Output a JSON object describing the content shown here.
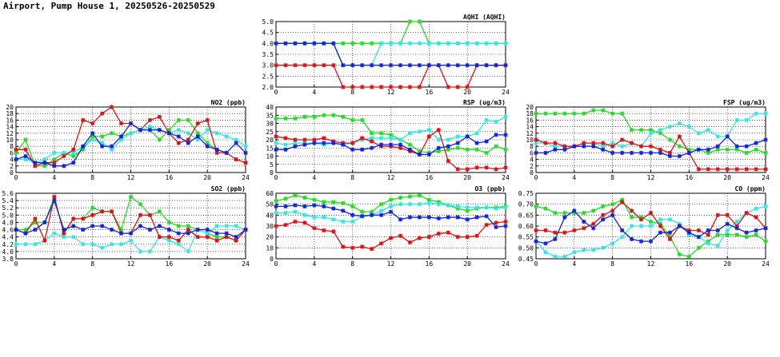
{
  "page": {
    "title": "Airport, Pump House 1, 20250526-20250529"
  },
  "colors": {
    "green": "#22dd22",
    "cyan": "#33e6e6",
    "red": "#dd1111",
    "blue": "#1122dd"
  },
  "chart_data": [
    {
      "id": "aqhi",
      "type": "line",
      "title": "AQHI (AQHI)",
      "xticks": [
        0,
        4,
        8,
        12,
        16,
        20,
        24
      ],
      "yticks": [
        2.0,
        2.5,
        3.0,
        3.5,
        4.0,
        4.5,
        5.0
      ],
      "ylim": [
        2.0,
        5.0
      ],
      "ytick_labels": [
        "2.0",
        "2.5",
        "3.0",
        "3.5",
        "4.0",
        "4.5",
        "5.0"
      ],
      "x": [
        0,
        1,
        2,
        3,
        4,
        5,
        6,
        7,
        8,
        9,
        10,
        11,
        12,
        13,
        14,
        15,
        16,
        17,
        18,
        19,
        20,
        21,
        22,
        23,
        24
      ],
      "series": [
        {
          "color": "green",
          "values": [
            4,
            4,
            4,
            4,
            4,
            4,
            4,
            4,
            4,
            4,
            4,
            4,
            4,
            4,
            5,
            5,
            4,
            4,
            4,
            4,
            4,
            4,
            4,
            4,
            4
          ]
        },
        {
          "color": "cyan",
          "values": [
            4,
            4,
            4,
            4,
            4,
            4,
            4,
            3,
            3,
            3,
            3,
            4,
            4,
            4,
            4,
            4,
            4,
            4,
            4,
            4,
            4,
            4,
            4,
            4,
            4
          ]
        },
        {
          "color": "red",
          "values": [
            3,
            3,
            3,
            3,
            3,
            3,
            3,
            2,
            2,
            2,
            2,
            2,
            2,
            2,
            2,
            2,
            3,
            3,
            2,
            2,
            2,
            3,
            3,
            3,
            3
          ]
        },
        {
          "color": "blue",
          "values": [
            4,
            4,
            4,
            4,
            4,
            4,
            4,
            3,
            3,
            3,
            3,
            3,
            3,
            3,
            3,
            3,
            3,
            3,
            3,
            3,
            3,
            3,
            3,
            3,
            3
          ]
        }
      ]
    },
    {
      "id": "no2",
      "type": "line",
      "title": "NO2 (ppb)",
      "xticks": [
        0,
        4,
        8,
        12,
        16,
        20,
        24
      ],
      "yticks": [
        0,
        2,
        4,
        6,
        8,
        10,
        12,
        14,
        16,
        18,
        20
      ],
      "ylim": [
        0,
        20
      ],
      "ytick_labels": [
        "0",
        "2",
        "4",
        "6",
        "8",
        "10",
        "12",
        "14",
        "16",
        "18",
        "20"
      ],
      "x": [
        0,
        1,
        2,
        3,
        4,
        5,
        6,
        7,
        8,
        9,
        10,
        11,
        12,
        13,
        14,
        15,
        16,
        17,
        18,
        19,
        20,
        21,
        22,
        23,
        24
      ],
      "series": [
        {
          "color": "green",
          "values": [
            6,
            10,
            2,
            2,
            4,
            6,
            5,
            7,
            11,
            11,
            12,
            11,
            12,
            13,
            13,
            10,
            13,
            16,
            16,
            12,
            9,
            7,
            6,
            4,
            3
          ]
        },
        {
          "color": "cyan",
          "values": [
            4,
            4,
            3,
            4,
            6,
            6,
            6,
            8,
            10,
            9,
            7,
            10,
            12,
            13,
            14,
            13,
            12,
            13,
            12,
            10,
            13,
            12,
            11,
            10,
            8
          ]
        },
        {
          "color": "red",
          "values": [
            7,
            7,
            2,
            3,
            3,
            5,
            7,
            16,
            15,
            18,
            20,
            15,
            15,
            13,
            16,
            17,
            12,
            9,
            10,
            15,
            16,
            6,
            6,
            4,
            3
          ]
        },
        {
          "color": "blue",
          "values": [
            4,
            5,
            3,
            3,
            2,
            2,
            3,
            8,
            12,
            8,
            8,
            11,
            15,
            13,
            13,
            13,
            12,
            11,
            9,
            11,
            8,
            7,
            6,
            9,
            6
          ]
        }
      ]
    },
    {
      "id": "rsp",
      "type": "line",
      "title": "RSP (ug/m3)",
      "xticks": [
        0,
        4,
        8,
        12,
        16,
        20,
        24
      ],
      "yticks": [
        0,
        5,
        10,
        15,
        20,
        25,
        30,
        35,
        40
      ],
      "ylim": [
        0,
        40
      ],
      "ytick_labels": [
        "0",
        "5",
        "10",
        "15",
        "20",
        "25",
        "30",
        "35",
        "40"
      ],
      "x": [
        0,
        1,
        2,
        3,
        4,
        5,
        6,
        7,
        8,
        9,
        10,
        11,
        12,
        13,
        14,
        15,
        16,
        17,
        18,
        19,
        20,
        21,
        22,
        23,
        24
      ],
      "series": [
        {
          "color": "green",
          "values": [
            33,
            33,
            33,
            34,
            34,
            35,
            35,
            34,
            32,
            32,
            24,
            24,
            23,
            20,
            17,
            13,
            12,
            13,
            14,
            15,
            14,
            14,
            12,
            16,
            14
          ]
        },
        {
          "color": "cyan",
          "values": [
            18,
            17,
            18,
            18,
            18,
            17,
            18,
            17,
            18,
            20,
            21,
            21,
            21,
            20,
            24,
            25,
            26,
            20,
            20,
            22,
            22,
            24,
            32,
            31,
            34
          ]
        },
        {
          "color": "red",
          "values": [
            22,
            21,
            20,
            20,
            20,
            21,
            19,
            18,
            18,
            21,
            19,
            16,
            16,
            15,
            13,
            11,
            22,
            26,
            7,
            2,
            2,
            3,
            3,
            2,
            3
          ]
        },
        {
          "color": "blue",
          "values": [
            14,
            14,
            16,
            17,
            18,
            18,
            18,
            17,
            14,
            14,
            15,
            17,
            17,
            17,
            14,
            11,
            11,
            15,
            16,
            18,
            22,
            18,
            19,
            23,
            23
          ]
        }
      ]
    },
    {
      "id": "fsp",
      "type": "line",
      "title": "FSP (ug/m3)",
      "xticks": [
        0,
        4,
        8,
        12,
        16,
        20,
        24
      ],
      "yticks": [
        0,
        2,
        4,
        6,
        8,
        10,
        12,
        14,
        16,
        18,
        20
      ],
      "ylim": [
        0,
        20
      ],
      "ytick_labels": [
        "0",
        "2",
        "4",
        "6",
        "8",
        "10",
        "12",
        "14",
        "16",
        "18",
        "20"
      ],
      "x": [
        0,
        1,
        2,
        3,
        4,
        5,
        6,
        7,
        8,
        9,
        10,
        11,
        12,
        13,
        14,
        15,
        16,
        17,
        18,
        19,
        20,
        21,
        22,
        23,
        24
      ],
      "series": [
        {
          "color": "green",
          "values": [
            18,
            18,
            18,
            18,
            18,
            18,
            19,
            19,
            18,
            18,
            13,
            13,
            13,
            12,
            10,
            8,
            7,
            7,
            6,
            7,
            7,
            7,
            6,
            7,
            6
          ]
        },
        {
          "color": "cyan",
          "values": [
            9,
            9,
            8,
            8,
            8,
            9,
            9,
            8,
            9,
            8,
            9,
            8,
            12,
            13,
            14,
            15,
            14,
            12,
            13,
            11,
            11,
            16,
            16,
            18,
            18
          ]
        },
        {
          "color": "red",
          "values": [
            10,
            9,
            9,
            8,
            8,
            9,
            9,
            9,
            8,
            10,
            9,
            8,
            8,
            7,
            6,
            11,
            6,
            1,
            1,
            1,
            1,
            1,
            1,
            1,
            1
          ]
        },
        {
          "color": "blue",
          "values": [
            6,
            6,
            7,
            7,
            8,
            8,
            8,
            7,
            6,
            6,
            6,
            6,
            6,
            6,
            5,
            5,
            6,
            7,
            7,
            8,
            11,
            8,
            8,
            9,
            10
          ]
        }
      ]
    },
    {
      "id": "so2",
      "type": "line",
      "title": "SO2 (ppb)",
      "xticks": [
        0,
        4,
        8,
        12,
        16,
        20,
        24
      ],
      "yticks": [
        3.8,
        4.0,
        4.2,
        4.4,
        4.6,
        4.8,
        5.0,
        5.2,
        5.4,
        5.6
      ],
      "ylim": [
        3.8,
        5.6
      ],
      "ytick_labels": [
        "3.8",
        "4.0",
        "4.2",
        "4.4",
        "4.6",
        "4.8",
        "5.0",
        "5.2",
        "5.4",
        "5.6"
      ],
      "x": [
        0,
        1,
        2,
        3,
        4,
        5,
        6,
        7,
        8,
        9,
        10,
        11,
        12,
        13,
        14,
        15,
        16,
        17,
        18,
        19,
        20,
        21,
        22,
        23,
        24
      ],
      "series": [
        {
          "color": "green",
          "values": [
            4.6,
            4.6,
            4.8,
            4.8,
            5.5,
            4.5,
            4.9,
            4.9,
            5.2,
            5.1,
            5.1,
            4.6,
            5.5,
            5.3,
            5.0,
            5.1,
            4.8,
            4.7,
            4.7,
            4.6,
            4.5,
            4.4,
            4.4,
            4.3,
            4.6
          ]
        },
        {
          "color": "cyan",
          "values": [
            4.2,
            4.2,
            4.2,
            4.3,
            4.5,
            4.4,
            4.4,
            4.2,
            4.2,
            4.1,
            4.2,
            4.2,
            4.3,
            4.0,
            4.0,
            4.4,
            4.3,
            4.2,
            4.0,
            4.6,
            4.5,
            4.7,
            4.7,
            4.7,
            4.6
          ]
        },
        {
          "color": "red",
          "values": [
            4.6,
            4.5,
            4.9,
            4.3,
            5.5,
            4.5,
            4.9,
            4.9,
            5.0,
            5.1,
            5.1,
            4.5,
            4.5,
            5.0,
            5.0,
            4.4,
            4.4,
            4.3,
            4.6,
            4.4,
            4.4,
            4.3,
            4.4,
            4.3,
            4.6
          ]
        },
        {
          "color": "blue",
          "values": [
            4.6,
            4.5,
            4.6,
            4.8,
            5.4,
            4.6,
            4.7,
            4.6,
            4.7,
            4.7,
            4.6,
            4.5,
            4.5,
            4.7,
            4.6,
            4.7,
            4.6,
            4.5,
            4.5,
            4.6,
            4.6,
            4.5,
            4.5,
            4.4,
            4.6
          ]
        }
      ]
    },
    {
      "id": "o3",
      "type": "line",
      "title": "O3 (ppb)",
      "xticks": [
        0,
        4,
        8,
        12,
        16,
        20,
        24
      ],
      "yticks": [
        0,
        10,
        20,
        30,
        40,
        50,
        60
      ],
      "ylim": [
        0,
        60
      ],
      "ytick_labels": [
        "0",
        "10",
        "20",
        "30",
        "40",
        "50",
        "60"
      ],
      "x": [
        0,
        1,
        2,
        3,
        4,
        5,
        6,
        7,
        8,
        9,
        10,
        11,
        12,
        13,
        14,
        15,
        16,
        17,
        18,
        19,
        20,
        21,
        22,
        23,
        24
      ],
      "series": [
        {
          "color": "green",
          "values": [
            53,
            55,
            58,
            56,
            54,
            52,
            52,
            51,
            48,
            43,
            43,
            50,
            54,
            56,
            57,
            58,
            54,
            52,
            49,
            46,
            44,
            46,
            47,
            47,
            48
          ]
        },
        {
          "color": "cyan",
          "values": [
            42,
            42,
            43,
            40,
            38,
            38,
            36,
            34,
            34,
            39,
            40,
            44,
            48,
            50,
            50,
            50,
            51,
            50,
            49,
            48,
            47,
            47,
            47,
            46,
            47
          ]
        },
        {
          "color": "red",
          "values": [
            30,
            31,
            34,
            33,
            28,
            26,
            25,
            11,
            10,
            11,
            9,
            14,
            19,
            21,
            15,
            19,
            20,
            23,
            24,
            20,
            20,
            21,
            31,
            33,
            34
          ]
        },
        {
          "color": "blue",
          "values": [
            48,
            48,
            49,
            48,
            49,
            48,
            46,
            44,
            40,
            39,
            40,
            40,
            43,
            36,
            38,
            38,
            38,
            37,
            38,
            38,
            36,
            38,
            39,
            29,
            30
          ]
        }
      ]
    },
    {
      "id": "co",
      "type": "line",
      "title": "CO (ppm)",
      "xticks": [
        0,
        4,
        8,
        12,
        16,
        20,
        24
      ],
      "yticks": [
        0.45,
        0.5,
        0.55,
        0.6,
        0.65,
        0.7,
        0.75
      ],
      "ylim": [
        0.45,
        0.75
      ],
      "ytick_labels": [
        "0.45",
        "0.50",
        "0.55",
        "0.60",
        "0.65",
        "0.70",
        "0.75"
      ],
      "x": [
        0,
        1,
        2,
        3,
        4,
        5,
        6,
        7,
        8,
        9,
        10,
        11,
        12,
        13,
        14,
        15,
        16,
        17,
        18,
        19,
        20,
        21,
        22,
        23,
        24
      ],
      "series": [
        {
          "color": "green",
          "values": [
            0.69,
            0.68,
            0.66,
            0.66,
            0.66,
            0.66,
            0.67,
            0.69,
            0.7,
            0.72,
            0.64,
            0.64,
            0.62,
            0.61,
            0.55,
            0.47,
            0.46,
            0.5,
            0.53,
            0.56,
            0.56,
            0.56,
            0.55,
            0.56,
            0.53
          ]
        },
        {
          "color": "cyan",
          "values": [
            0.53,
            0.48,
            0.46,
            0.46,
            0.48,
            0.49,
            0.49,
            0.5,
            0.52,
            0.55,
            0.6,
            0.6,
            0.6,
            0.63,
            0.63,
            0.61,
            0.56,
            0.55,
            0.52,
            0.51,
            0.58,
            0.62,
            0.66,
            0.68,
            0.69
          ]
        },
        {
          "color": "red",
          "values": [
            0.58,
            0.58,
            0.57,
            0.57,
            0.58,
            0.59,
            0.61,
            0.65,
            0.67,
            0.71,
            0.67,
            0.63,
            0.66,
            0.6,
            0.54,
            0.6,
            0.58,
            0.58,
            0.56,
            0.65,
            0.65,
            0.6,
            0.66,
            0.64,
            0.59
          ]
        },
        {
          "color": "blue",
          "values": [
            0.53,
            0.52,
            0.54,
            0.64,
            0.67,
            0.62,
            0.59,
            0.63,
            0.65,
            0.58,
            0.54,
            0.53,
            0.53,
            0.57,
            0.57,
            0.6,
            0.57,
            0.55,
            0.58,
            0.58,
            0.61,
            0.59,
            0.57,
            0.58,
            0.59
          ]
        }
      ]
    }
  ]
}
